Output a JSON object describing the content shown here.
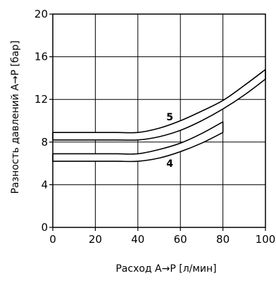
{
  "chart_data": {
    "type": "area",
    "xlabel": "Расход A→P [л/мин]",
    "ylabel": "Разность давлений A→P [бар]",
    "xlim": [
      0,
      100
    ],
    "ylim": [
      0,
      20
    ],
    "xticks": [
      0,
      20,
      40,
      60,
      80,
      100
    ],
    "yticks": [
      0,
      4,
      8,
      12,
      16,
      20
    ],
    "xtick_labels": [
      "0",
      "20",
      "40",
      "60",
      "80",
      "100"
    ],
    "ytick_labels": [
      "0",
      "4",
      "8",
      "12",
      "16",
      "20"
    ],
    "grid": true,
    "legend": "none",
    "series": [
      {
        "name": "5",
        "x": [
          0,
          10,
          20,
          30,
          40,
          50,
          60,
          70,
          80,
          90,
          100
        ],
        "upper": [
          8.9,
          8.9,
          8.9,
          8.9,
          8.9,
          9.3,
          10.0,
          10.9,
          11.9,
          13.3,
          14.8
        ],
        "lower": [
          8.2,
          8.2,
          8.2,
          8.2,
          8.2,
          8.5,
          9.1,
          10.0,
          11.1,
          12.4,
          13.9
        ]
      },
      {
        "name": "4",
        "x": [
          0,
          10,
          20,
          30,
          40,
          50,
          60,
          70,
          80
        ],
        "upper": [
          6.9,
          6.9,
          6.9,
          6.9,
          6.9,
          7.3,
          7.9,
          8.8,
          9.9
        ],
        "lower": [
          6.2,
          6.2,
          6.2,
          6.2,
          6.2,
          6.5,
          7.1,
          7.9,
          8.9
        ]
      }
    ]
  }
}
